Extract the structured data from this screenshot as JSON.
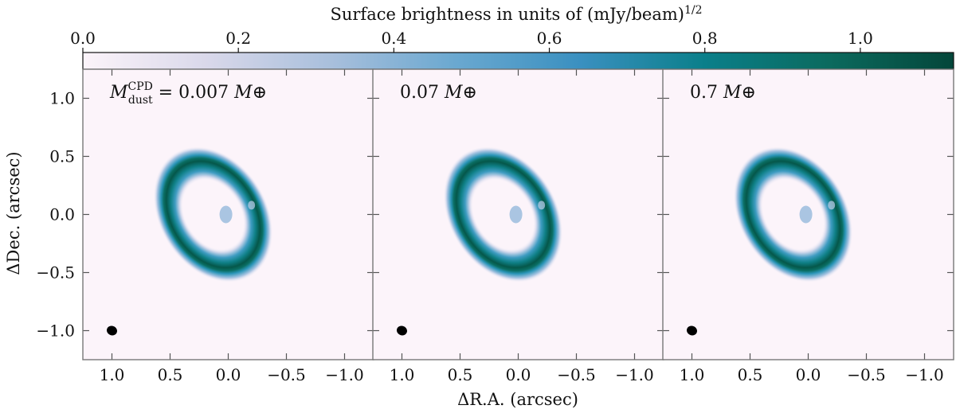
{
  "chart_data": {
    "type": "heatmap",
    "colorbar": {
      "title": "Surface brightness in units of (mJy/beam)",
      "title_exponent": "1/2",
      "range": [
        0.0,
        1.12
      ],
      "ticks": [
        0.0,
        0.2,
        0.4,
        0.6,
        0.8,
        1.0
      ],
      "tick_labels": [
        "0.0",
        "0.2",
        "0.4",
        "0.6",
        "0.8",
        "1.0"
      ],
      "colors": [
        "#fcf4fa",
        "#d9d8ea",
        "#a8bfdc",
        "#6aa8d0",
        "#3a90c0",
        "#0a7f8a",
        "#0b6a5e",
        "#04463a"
      ]
    },
    "xlabel": "ΔR.A. (arcsec)",
    "ylabel": "ΔDec. (arcsec)",
    "xlim": [
      1.25,
      -1.25
    ],
    "ylim": [
      -1.25,
      1.25
    ],
    "xticks": [
      1.0,
      0.5,
      0.0,
      -0.5,
      -1.0
    ],
    "xtick_labels": [
      "1.0",
      "0.5",
      "0.0",
      "−0.5",
      "−1.0"
    ],
    "yticks": [
      1.0,
      0.5,
      0.0,
      -0.5,
      -1.0
    ],
    "ytick_labels": [
      "1.0",
      "0.5",
      "0.0",
      "−0.5",
      "−1.0"
    ],
    "ring": {
      "center": [
        0.13,
        0.0
      ],
      "semi_major_arcsec": 0.57,
      "semi_minor_arcsec": 0.42,
      "position_angle_deg": -32,
      "peak": 1.1
    },
    "beam": {
      "center": [
        1.0,
        -1.0
      ],
      "size_arcsec": [
        0.09,
        0.08
      ]
    },
    "panels": [
      {
        "label_main": "M",
        "label_sup": "CPD",
        "label_sub": "dust",
        "label_value": " = 0.007 ",
        "label_unit": "M⊕"
      },
      {
        "label_value": "0.07 ",
        "label_unit": "M⊕"
      },
      {
        "label_value": "0.7 ",
        "label_unit": "M⊕"
      }
    ]
  }
}
